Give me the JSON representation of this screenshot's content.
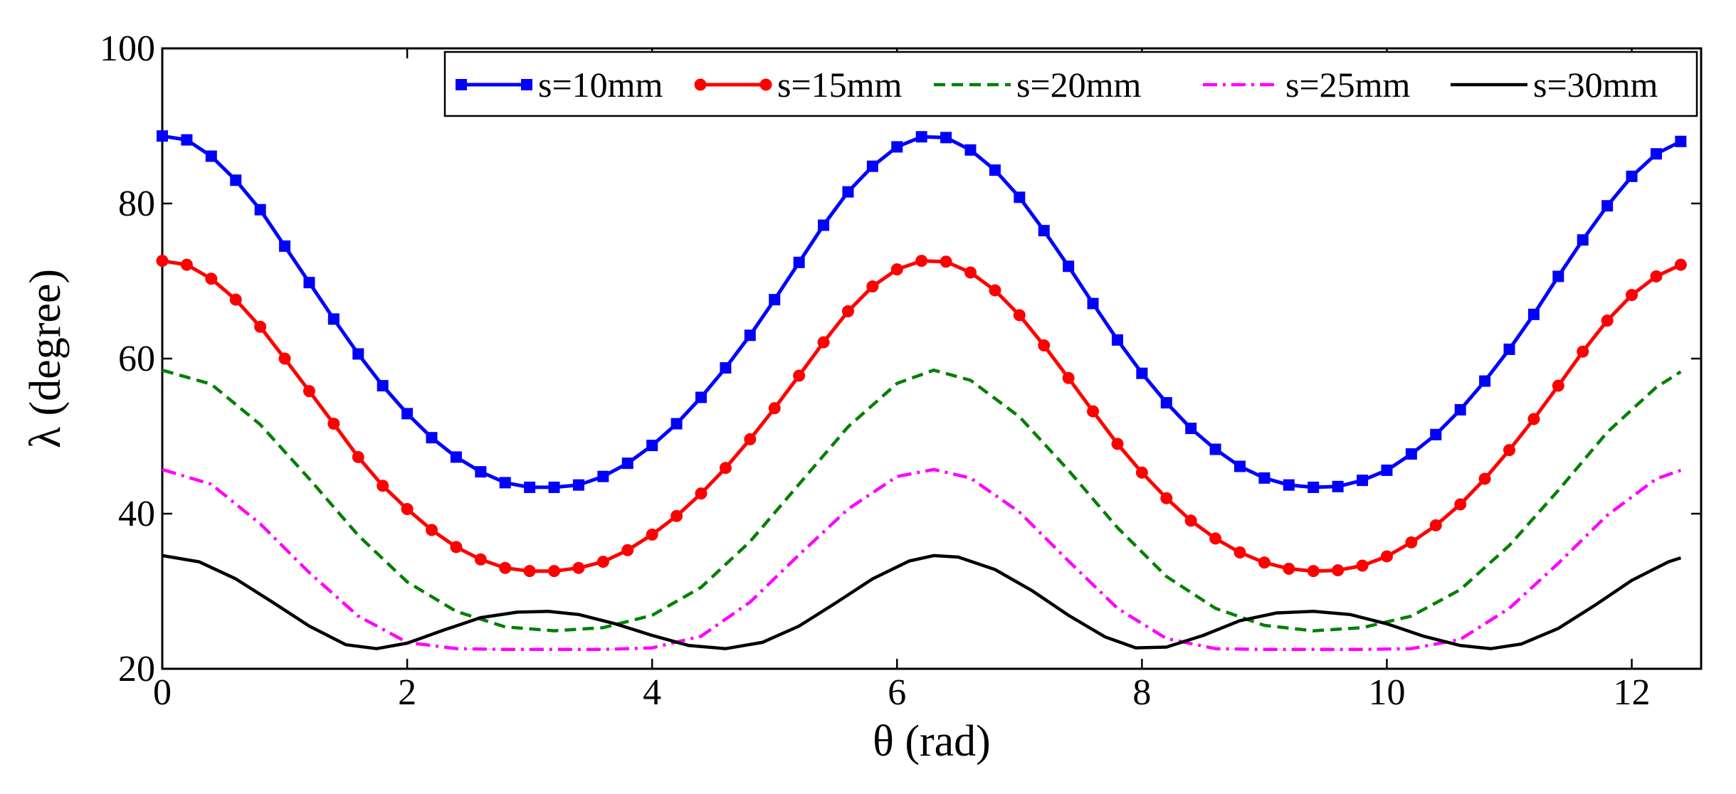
{
  "chart_data": {
    "type": "line",
    "title": "",
    "xlabel": "θ (rad)",
    "ylabel": "λ (degree)",
    "xlim": [
      0,
      12.5664
    ],
    "ylim": [
      20,
      100
    ],
    "xticks": [
      0,
      2,
      4,
      6,
      8,
      10,
      12
    ],
    "xtick_labels": [
      "0",
      "2",
      "4",
      "6",
      "8",
      "10",
      "12"
    ],
    "yticks": [
      20,
      40,
      60,
      80,
      100
    ],
    "ytick_labels": [
      "20",
      "40",
      "60",
      "80",
      "100"
    ],
    "grid": false,
    "legend_position": "top-right",
    "series": [
      {
        "name": "s=10mm",
        "color": "#0000ff",
        "style": "solid",
        "marker": "square",
        "x": [
          0.0,
          0.2,
          0.4,
          0.6,
          0.8,
          1.0,
          1.2,
          1.4,
          1.6,
          1.8,
          2.0,
          2.2,
          2.4,
          2.6,
          2.8,
          3.0,
          3.2,
          3.4,
          3.6,
          3.8,
          4.0,
          4.2,
          4.4,
          4.6,
          4.8,
          5.0,
          5.2,
          5.4,
          5.6,
          5.8,
          6.0,
          6.2,
          6.4,
          6.6,
          6.8,
          7.0,
          7.2,
          7.4,
          7.6,
          7.8,
          8.0,
          8.2,
          8.4,
          8.6,
          8.8,
          9.0,
          9.2,
          9.4,
          9.6,
          9.8,
          10.0,
          10.2,
          10.4,
          10.6,
          10.8,
          11.0,
          11.2,
          11.4,
          11.6,
          11.8,
          12.0,
          12.2,
          12.4
        ],
        "y": [
          88.7,
          88.2,
          86.1,
          83.0,
          79.2,
          74.5,
          69.8,
          65.1,
          60.6,
          56.5,
          52.9,
          49.8,
          47.3,
          45.4,
          44.0,
          43.4,
          43.4,
          43.7,
          44.8,
          46.5,
          48.8,
          51.6,
          55.0,
          58.8,
          63.0,
          67.6,
          72.4,
          77.2,
          81.5,
          84.8,
          87.3,
          88.6,
          88.5,
          86.9,
          84.3,
          80.8,
          76.5,
          71.9,
          67.1,
          62.4,
          58.1,
          54.3,
          51.0,
          48.3,
          46.1,
          44.6,
          43.7,
          43.4,
          43.5,
          44.3,
          45.6,
          47.7,
          50.2,
          53.4,
          57.1,
          61.2,
          65.7,
          70.6,
          75.3,
          79.7,
          83.5,
          86.4,
          88.0
        ]
      },
      {
        "name": "s=15mm",
        "color": "#ff0000",
        "style": "solid",
        "marker": "circle",
        "x": [
          0.0,
          0.2,
          0.4,
          0.6,
          0.8,
          1.0,
          1.2,
          1.4,
          1.6,
          1.8,
          2.0,
          2.2,
          2.4,
          2.6,
          2.8,
          3.0,
          3.2,
          3.4,
          3.6,
          3.8,
          4.0,
          4.2,
          4.4,
          4.6,
          4.8,
          5.0,
          5.2,
          5.4,
          5.6,
          5.8,
          6.0,
          6.2,
          6.4,
          6.6,
          6.8,
          7.0,
          7.2,
          7.4,
          7.6,
          7.8,
          8.0,
          8.2,
          8.4,
          8.6,
          8.8,
          9.0,
          9.2,
          9.4,
          9.6,
          9.8,
          10.0,
          10.2,
          10.4,
          10.6,
          10.8,
          11.0,
          11.2,
          11.4,
          11.6,
          11.8,
          12.0,
          12.2,
          12.4
        ],
        "y": [
          72.6,
          72.1,
          70.3,
          67.6,
          64.1,
          60.0,
          55.8,
          51.6,
          47.3,
          43.6,
          40.6,
          37.9,
          35.7,
          34.1,
          33.0,
          32.6,
          32.6,
          33.0,
          33.8,
          35.3,
          37.3,
          39.7,
          42.6,
          45.9,
          49.6,
          53.6,
          57.8,
          62.1,
          66.1,
          69.3,
          71.5,
          72.6,
          72.5,
          71.1,
          68.8,
          65.6,
          61.7,
          57.5,
          53.2,
          49.0,
          45.3,
          42.0,
          39.1,
          36.8,
          35.0,
          33.7,
          32.9,
          32.6,
          32.7,
          33.3,
          34.5,
          36.3,
          38.5,
          41.2,
          44.5,
          48.2,
          52.2,
          56.5,
          60.9,
          64.9,
          68.2,
          70.6,
          72.1
        ]
      },
      {
        "name": "s=20mm",
        "color": "#008000",
        "style": "dashed",
        "marker": "none",
        "x": [
          0.0,
          0.4,
          0.8,
          1.2,
          1.6,
          2.0,
          2.4,
          2.8,
          3.2,
          3.6,
          4.0,
          4.4,
          4.8,
          5.2,
          5.6,
          6.0,
          6.3,
          6.6,
          7.0,
          7.4,
          7.8,
          8.2,
          8.6,
          9.0,
          9.4,
          9.8,
          10.2,
          10.6,
          11.0,
          11.4,
          11.8,
          12.2,
          12.4
        ],
        "y": [
          58.5,
          56.7,
          51.5,
          44.5,
          37.2,
          31.2,
          27.4,
          25.4,
          24.9,
          25.3,
          26.9,
          30.5,
          36.4,
          43.8,
          51.2,
          56.8,
          58.5,
          57.2,
          52.5,
          45.6,
          38.2,
          31.9,
          27.8,
          25.6,
          24.9,
          25.3,
          26.8,
          30.2,
          35.9,
          43.0,
          50.5,
          56.3,
          58.3
        ]
      },
      {
        "name": "s=25mm",
        "color": "#ff00ff",
        "style": "dashdot",
        "marker": "none",
        "x": [
          0.0,
          0.4,
          0.8,
          1.2,
          1.6,
          2.0,
          2.4,
          2.8,
          3.2,
          3.6,
          4.0,
          4.4,
          4.8,
          5.2,
          5.6,
          6.0,
          6.3,
          6.6,
          7.0,
          7.4,
          7.8,
          8.2,
          8.6,
          9.0,
          9.4,
          9.8,
          10.2,
          10.6,
          11.0,
          11.4,
          11.8,
          12.2,
          12.4
        ],
        "y": [
          45.7,
          43.8,
          38.7,
          32.4,
          26.8,
          23.4,
          22.6,
          22.5,
          22.5,
          22.5,
          22.7,
          24.2,
          28.6,
          34.7,
          40.6,
          44.8,
          45.7,
          44.6,
          40.2,
          33.9,
          27.8,
          23.9,
          22.6,
          22.5,
          22.5,
          22.5,
          22.6,
          23.8,
          27.8,
          33.6,
          39.8,
          44.5,
          45.6
        ]
      },
      {
        "name": "s=30mm",
        "color": "#000000",
        "style": "solid",
        "marker": "none",
        "x": [
          0.0,
          0.3,
          0.6,
          0.9,
          1.2,
          1.5,
          1.75,
          2.0,
          2.3,
          2.6,
          2.9,
          3.15,
          3.4,
          3.7,
          4.0,
          4.3,
          4.6,
          4.9,
          5.2,
          5.5,
          5.8,
          6.1,
          6.3,
          6.5,
          6.8,
          7.1,
          7.4,
          7.7,
          7.95,
          8.2,
          8.5,
          8.8,
          9.1,
          9.4,
          9.7,
          10.0,
          10.3,
          10.6,
          10.85,
          11.1,
          11.4,
          11.7,
          12.0,
          12.3,
          12.4
        ],
        "y": [
          34.6,
          33.8,
          31.6,
          28.6,
          25.5,
          23.1,
          22.6,
          23.3,
          25.0,
          26.6,
          27.3,
          27.4,
          27.0,
          25.8,
          24.3,
          23.0,
          22.6,
          23.4,
          25.5,
          28.5,
          31.6,
          33.9,
          34.6,
          34.4,
          32.8,
          30.1,
          26.9,
          24.1,
          22.7,
          22.8,
          24.3,
          26.2,
          27.2,
          27.4,
          27.0,
          25.8,
          24.2,
          23.0,
          22.6,
          23.2,
          25.2,
          28.2,
          31.4,
          33.8,
          34.3
        ]
      }
    ]
  }
}
